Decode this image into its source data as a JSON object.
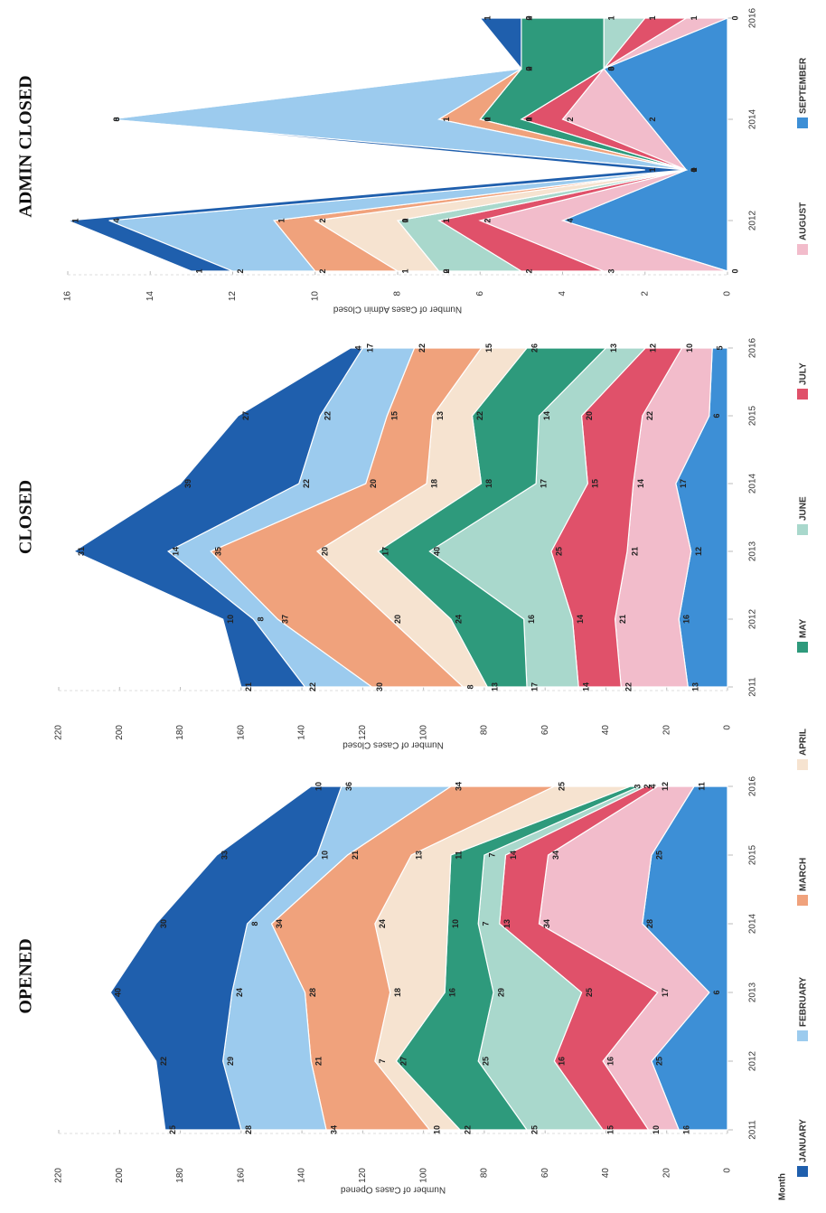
{
  "legend": {
    "title": "Month"
  },
  "chart_data": [
    {
      "type": "stacked-area",
      "title": "OPENED",
      "y_label": "Number of Cases Opened",
      "x": [
        2011,
        2012,
        2013,
        2014,
        2015,
        2016
      ],
      "xlim": [
        2011,
        2016
      ],
      "xticks": [
        2011,
        2012,
        2013,
        2014,
        2015,
        2016
      ],
      "ylim": [
        0,
        220
      ],
      "yticks": [
        0,
        20,
        40,
        60,
        80,
        100,
        120,
        140,
        160,
        180,
        200,
        220
      ],
      "grid": true,
      "series": [
        {
          "name": "JANUARY",
          "color": "#1f5fad",
          "values": [
            25,
            22,
            40,
            30,
            33,
            10
          ]
        },
        {
          "name": "FEBRUARY",
          "color": "#9ccbee",
          "values": [
            28,
            29,
            24,
            8,
            10,
            36
          ]
        },
        {
          "name": "MARCH",
          "color": "#f0a27c",
          "values": [
            34,
            21,
            28,
            34,
            21,
            34
          ]
        },
        {
          "name": "APRIL",
          "color": "#f6e3d0",
          "values": [
            10,
            7,
            18,
            24,
            13,
            25
          ]
        },
        {
          "name": "MAY",
          "color": "#2e9a7c",
          "values": [
            22,
            27,
            16,
            10,
            11,
            3
          ]
        },
        {
          "name": "JUNE",
          "color": "#a9d8cc",
          "values": [
            25,
            25,
            29,
            7,
            7,
            2
          ]
        },
        {
          "name": "JULY",
          "color": "#e0516a",
          "values": [
            15,
            16,
            25,
            13,
            14,
            4
          ]
        },
        {
          "name": "AUGUST",
          "color": "#f2bccb",
          "values": [
            10,
            16,
            17,
            34,
            34,
            12
          ]
        },
        {
          "name": "SEPTEMBER",
          "color": "#3d8fd6",
          "values": [
            16,
            25,
            6,
            28,
            25,
            11
          ]
        }
      ]
    },
    {
      "type": "stacked-area",
      "title": "CLOSED",
      "y_label": "Number of Cases Closed",
      "x": [
        2011,
        2012,
        2013,
        2014,
        2015,
        2016
      ],
      "xlim": [
        2011,
        2016
      ],
      "xticks": [
        2011,
        2012,
        2013,
        2014,
        2015,
        2016
      ],
      "ylim": [
        0,
        220
      ],
      "yticks": [
        0,
        20,
        40,
        60,
        80,
        100,
        120,
        140,
        160,
        180,
        200,
        220
      ],
      "grid": true,
      "series": [
        {
          "values": [
            21,
            10,
            31,
            39,
            27,
            4
          ]
        },
        {
          "values": [
            22,
            8,
            14,
            22,
            22,
            17
          ]
        },
        {
          "values": [
            30,
            37,
            35,
            20,
            15,
            22
          ]
        },
        {
          "values": [
            8,
            20,
            20,
            18,
            13,
            15
          ]
        },
        {
          "values": [
            13,
            24,
            17,
            18,
            22,
            26
          ]
        },
        {
          "values": [
            17,
            16,
            40,
            17,
            14,
            13
          ]
        },
        {
          "values": [
            14,
            14,
            25,
            15,
            20,
            12
          ]
        },
        {
          "values": [
            22,
            21,
            21,
            14,
            22,
            10
          ]
        },
        {
          "values": [
            13,
            16,
            12,
            17,
            6,
            5
          ]
        }
      ]
    },
    {
      "type": "stacked-area",
      "title": "ADMIN CLOSED",
      "y_label": "Number of Cases Admin Closed",
      "x": [
        2011,
        2012,
        2013,
        2014,
        2015,
        2016
      ],
      "xlim": [
        2011,
        2016
      ],
      "xticks": [
        2012,
        2014,
        2016
      ],
      "ylim": [
        0,
        16
      ],
      "yticks": [
        0,
        2,
        4,
        6,
        8,
        10,
        12,
        14,
        16
      ],
      "grid": true,
      "series": [
        {
          "values": [
            1,
            1,
            1,
            0,
            0,
            1
          ]
        },
        {
          "values": [
            2,
            4,
            0,
            8,
            0,
            0
          ]
        },
        {
          "values": [
            2,
            1,
            0,
            1,
            0,
            0
          ]
        },
        {
          "values": [
            1,
            2,
            0,
            0,
            0,
            0
          ]
        },
        {
          "values": [
            0,
            0,
            0,
            1,
            2,
            2
          ]
        },
        {
          "values": [
            2,
            1,
            0,
            0,
            0,
            1
          ]
        },
        {
          "values": [
            2,
            1,
            0,
            1,
            0,
            1
          ]
        },
        {
          "values": [
            3,
            2,
            0,
            2,
            0,
            1
          ]
        },
        {
          "values": [
            0,
            4,
            1,
            2,
            3,
            0
          ]
        }
      ]
    }
  ]
}
